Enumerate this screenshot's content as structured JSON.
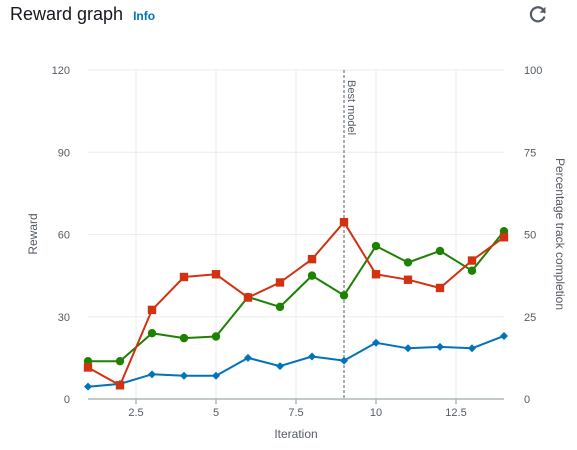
{
  "header": {
    "title": "Reward graph",
    "info_label": "Info"
  },
  "icons": {
    "refresh": "refresh-icon"
  },
  "chart_data": {
    "type": "line",
    "title": "",
    "xlabel": "Iteration",
    "ylabel": "Reward",
    "y2label": "Percentage track completion",
    "xlim": [
      1,
      14
    ],
    "ylim": [
      0,
      120
    ],
    "y2lim": [
      0,
      100
    ],
    "x_ticks": [
      2.5,
      5,
      7.5,
      10,
      12.5
    ],
    "y_ticks": [
      0,
      30,
      60,
      90,
      120
    ],
    "y2_ticks": [
      0,
      25,
      50,
      75,
      100
    ],
    "grid": true,
    "x": [
      1,
      2,
      3,
      4,
      5,
      6,
      7,
      8,
      9,
      10,
      11,
      12,
      13,
      14
    ],
    "series": [
      {
        "color": "#0073bb",
        "marker": "diamond",
        "axis": "left",
        "values": [
          4.5,
          5.5,
          9,
          8.5,
          8.5,
          15,
          12,
          15.5,
          14,
          20.5,
          18.5,
          19,
          18.5,
          23
        ]
      },
      {
        "color": "#1d8102",
        "marker": "circle",
        "axis": "right",
        "values": [
          11.5,
          11.5,
          20,
          18.5,
          19,
          31,
          28,
          37.5,
          31.5,
          46.5,
          41.5,
          45,
          39,
          51
        ]
      },
      {
        "color": "#d13212",
        "marker": "square",
        "axis": "left",
        "values": [
          11.5,
          5,
          32.5,
          44.5,
          45.5,
          37,
          42.5,
          51,
          64.5,
          45.5,
          43.5,
          40.5,
          50.5,
          59
        ]
      }
    ],
    "annotation": {
      "x": 9,
      "label": "Best model"
    },
    "colors": {
      "grid": "#eaeded",
      "axis": "#879596",
      "annotation": "#545b64"
    }
  }
}
